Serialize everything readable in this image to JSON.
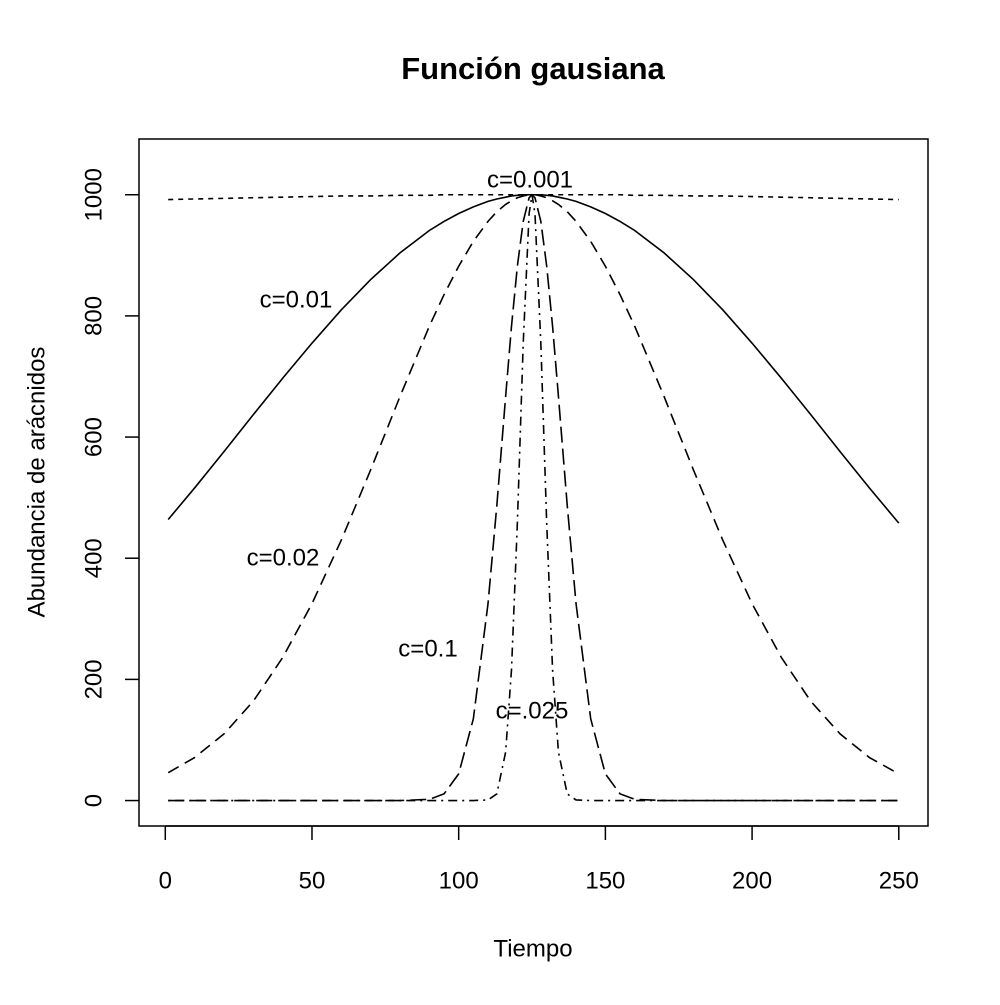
{
  "chart_data": {
    "type": "line",
    "title": "Función gausiana",
    "x_label": "Tiempo",
    "y_label": "Abundancia de arácnidos",
    "x": [
      1,
      10,
      20,
      30,
      40,
      50,
      60,
      70,
      80,
      90,
      95,
      100,
      105,
      110,
      113,
      116,
      118,
      120,
      122,
      124,
      125,
      126,
      128,
      130,
      132,
      134,
      137,
      140,
      145,
      150,
      155,
      160,
      170,
      180,
      190,
      200,
      210,
      220,
      230,
      240,
      250
    ],
    "series": [
      {
        "name": "c=0.001",
        "color": "#000000",
        "line_style": "dashed",
        "values": [
          992,
          993,
          994,
          995,
          996,
          997,
          998,
          998,
          999,
          999,
          1000,
          1000,
          1000,
          1000,
          1000,
          1000,
          1000,
          1000,
          1000,
          1000,
          1000,
          1000,
          1000,
          1000,
          1000,
          1000,
          1000,
          1000,
          1000,
          1000,
          1000,
          999,
          999,
          998,
          998,
          997,
          996,
          995,
          994,
          993,
          992
        ]
      },
      {
        "name": "c=0.01",
        "color": "#000000",
        "line_style": "solid",
        "values": [
          464,
          516,
          576,
          637,
          697,
          755,
          810,
          860,
          904,
          941,
          956,
          969,
          980,
          989,
          993,
          996,
          998,
          999,
          1000,
          1000,
          1000,
          1000,
          1000,
          999,
          998,
          996,
          993,
          989,
          980,
          969,
          956,
          941,
          904,
          860,
          810,
          755,
          697,
          637,
          576,
          516,
          458
        ]
      },
      {
        "name": "c=0.02",
        "color": "#000000",
        "line_style": "long-dashed",
        "values": [
          46,
          71,
          110,
          164,
          236,
          325,
          430,
          546,
          667,
          783,
          835,
          882,
          923,
          956,
          972,
          984,
          990,
          995,
          998,
          1000,
          1000,
          1000,
          998,
          995,
          990,
          984,
          972,
          956,
          923,
          882,
          835,
          783,
          667,
          546,
          430,
          325,
          236,
          164,
          110,
          71,
          44
        ]
      },
      {
        "name": "c=0.1",
        "color": "#000000",
        "line_style": "longer-dashed",
        "values": [
          0,
          0,
          0,
          0,
          0,
          0,
          0,
          0,
          0,
          2,
          11,
          44,
          135,
          325,
          487,
          667,
          783,
          882,
          956,
          995,
          1000,
          995,
          956,
          882,
          783,
          667,
          487,
          325,
          135,
          44,
          11,
          2,
          0,
          0,
          0,
          0,
          0,
          0,
          0,
          0,
          0
        ]
      },
      {
        "name": "c=.025",
        "color": "#000000",
        "line_style": "dot-dash",
        "values": [
          0,
          0,
          0,
          0,
          0,
          0,
          0,
          0,
          0,
          0,
          0,
          0,
          0,
          1,
          11,
          80,
          216,
          458,
          755,
          969,
          1000,
          969,
          755,
          458,
          216,
          80,
          11,
          1,
          0,
          0,
          0,
          0,
          0,
          0,
          0,
          0,
          0,
          0,
          0,
          0,
          0
        ]
      }
    ],
    "xlim": [
      -8.96,
      259.96
    ],
    "ylim": [
      -42,
      1092
    ],
    "xticks": [
      0,
      50,
      100,
      150,
      200,
      250
    ],
    "yticks": [
      0,
      200,
      400,
      600,
      800,
      1000
    ]
  }
}
